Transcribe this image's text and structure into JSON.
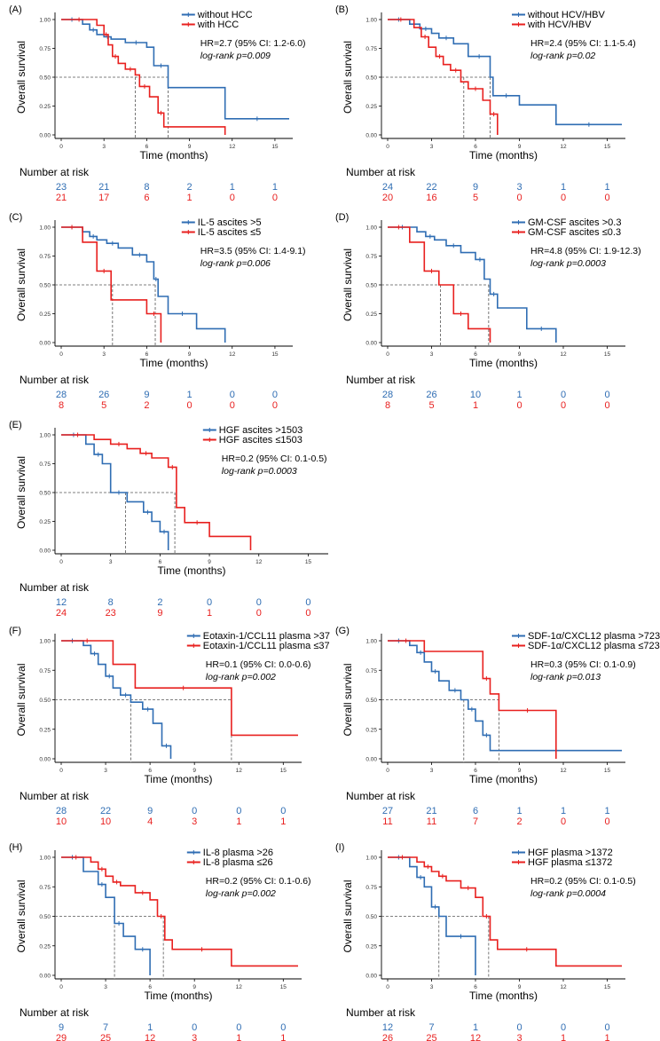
{
  "colors": {
    "blue": "#2f6db3",
    "red": "#e8201f",
    "axis": "#000000",
    "ref": "#555555"
  },
  "common": {
    "xlabel": "Time (months)",
    "ylabel": "Overall survival",
    "risk_title": "Number at risk",
    "xticks": [
      "0",
      "3",
      "6",
      "9",
      "12",
      "15"
    ],
    "yticks": [
      "0.00",
      "0.25",
      "0.50",
      "0.75",
      "1.00"
    ]
  },
  "chart_data": [
    {
      "type": "line",
      "panel": "(A)",
      "xlabel": "Time (months)",
      "ylabel": "Overall survival",
      "xlim": [
        0,
        16
      ],
      "ylim": [
        0,
        1
      ],
      "legend": [
        "without HCC",
        "with HCC"
      ],
      "hr_text": "HR=2.7 (95% CI: 1.2-6.0)",
      "p_text": "log-rank p=0.009",
      "median": [
        7.5,
        5.2
      ],
      "series": [
        {
          "name": "without HCC",
          "color": "blue",
          "x": [
            0,
            1.5,
            2,
            2.5,
            3,
            3.5,
            4.5,
            6,
            6.5,
            7.5,
            11.5,
            16
          ],
          "y": [
            1,
            0.96,
            0.91,
            0.87,
            0.85,
            0.83,
            0.8,
            0.76,
            0.6,
            0.41,
            0.14,
            0.14
          ]
        },
        {
          "name": "with HCC",
          "color": "red",
          "x": [
            0,
            2.5,
            3,
            3.3,
            3.6,
            4,
            4.5,
            5.2,
            5.5,
            6.2,
            6.8,
            7.2,
            11.5
          ],
          "y": [
            1,
            0.95,
            0.87,
            0.78,
            0.68,
            0.62,
            0.57,
            0.52,
            0.42,
            0.33,
            0.19,
            0.07,
            0
          ]
        }
      ],
      "risk": [
        [
          "23",
          "21",
          "8",
          "2",
          "1",
          "1"
        ],
        [
          "21",
          "17",
          "6",
          "1",
          "0",
          "0"
        ]
      ]
    },
    {
      "type": "line",
      "panel": "(B)",
      "xlabel": "Time (months)",
      "ylabel": "Overall survival",
      "xlim": [
        0,
        16
      ],
      "ylim": [
        0,
        1
      ],
      "legend": [
        "without HCV/HBV",
        "with HCV/HBV"
      ],
      "hr_text": "HR=2.4 (95% CI: 1.1-5.4)",
      "p_text": "log-rank p=0.02",
      "median": [
        7.0,
        5.2
      ],
      "series": [
        {
          "name": "without HCV/HBV",
          "color": "blue",
          "x": [
            0,
            1.5,
            2.2,
            3,
            3.5,
            4.5,
            5.5,
            7,
            7.2,
            9,
            11.5,
            16
          ],
          "y": [
            1,
            0.96,
            0.92,
            0.88,
            0.84,
            0.79,
            0.68,
            0.5,
            0.34,
            0.26,
            0.09,
            0.09
          ]
        },
        {
          "name": "with HCV/HBV",
          "color": "red",
          "x": [
            0,
            1.8,
            2.3,
            2.8,
            3.3,
            3.8,
            4.3,
            5,
            5.5,
            6.5,
            7,
            7.5
          ],
          "y": [
            1,
            0.93,
            0.85,
            0.76,
            0.68,
            0.61,
            0.56,
            0.46,
            0.4,
            0.3,
            0.18,
            0
          ]
        }
      ],
      "risk": [
        [
          "24",
          "22",
          "9",
          "3",
          "1",
          "1"
        ],
        [
          "20",
          "16",
          "5",
          "0",
          "0",
          "0"
        ]
      ]
    },
    {
      "type": "line",
      "panel": "(C)",
      "xlabel": "Time (months)",
      "ylabel": "Overall survival",
      "xlim": [
        0,
        16
      ],
      "ylim": [
        0,
        1
      ],
      "legend": [
        "IL-5 ascites >5",
        "IL-5 ascites ≤5"
      ],
      "hr_text": "HR=3.5 (95% CI: 1.4-9.1)",
      "p_text": "log-rank p=0.006",
      "median": [
        6.6,
        3.6
      ],
      "series": [
        {
          "name": "IL-5 ascites >5",
          "color": "blue",
          "x": [
            0,
            1.5,
            2,
            2.5,
            3.2,
            4,
            5,
            6,
            6.5,
            6.8,
            7.5,
            9.5,
            11.5
          ],
          "y": [
            1,
            0.96,
            0.92,
            0.89,
            0.86,
            0.82,
            0.76,
            0.7,
            0.55,
            0.4,
            0.25,
            0.12,
            0
          ]
        },
        {
          "name": "IL-5 ascites ≤5",
          "color": "red",
          "x": [
            0,
            1.5,
            2.5,
            3.5,
            6,
            7
          ],
          "y": [
            1,
            0.87,
            0.62,
            0.37,
            0.25,
            0
          ]
        }
      ],
      "risk": [
        [
          "28",
          "26",
          "9",
          "1",
          "0",
          "0"
        ],
        [
          "8",
          "5",
          "2",
          "0",
          "0",
          "0"
        ]
      ]
    },
    {
      "type": "line",
      "panel": "(D)",
      "xlabel": "Time (months)",
      "ylabel": "Overall survival",
      "xlim": [
        0,
        16
      ],
      "ylim": [
        0,
        1
      ],
      "legend": [
        "GM-CSF ascites >0.3",
        "GM-CSF ascites ≤0.3"
      ],
      "hr_text": "HR=4.8 (95% CI: 1.9-12.3)",
      "p_text": "log-rank p=0.0003",
      "median": [
        6.9,
        3.6
      ],
      "series": [
        {
          "name": "GM-CSF ascites >0.3",
          "color": "blue",
          "x": [
            0,
            2,
            2.6,
            3.2,
            4,
            5,
            6,
            6.6,
            7,
            7.5,
            9.5,
            11.5
          ],
          "y": [
            1,
            0.96,
            0.92,
            0.89,
            0.84,
            0.78,
            0.72,
            0.55,
            0.42,
            0.3,
            0.12,
            0
          ]
        },
        {
          "name": "GM-CSF ascites ≤0.3",
          "color": "red",
          "x": [
            0,
            1.5,
            2.5,
            3.5,
            4.5,
            5.5,
            7
          ],
          "y": [
            1,
            0.87,
            0.62,
            0.5,
            0.25,
            0.12,
            0
          ]
        }
      ],
      "risk": [
        [
          "28",
          "26",
          "10",
          "1",
          "0",
          "0"
        ],
        [
          "8",
          "5",
          "1",
          "0",
          "0",
          "0"
        ]
      ]
    },
    {
      "type": "line",
      "panel": "(E)",
      "xlabel": "Time (months)",
      "ylabel": "Overall survival",
      "xlim": [
        0,
        16
      ],
      "ylim": [
        0,
        1
      ],
      "legend": [
        "HGF ascites >1503",
        "HGF ascites ≤1503"
      ],
      "hr_text": "HR=0.2 (95% CI: 0.1-0.5)",
      "p_text": "log-rank p=0.0003",
      "median": [
        3.9,
        6.9
      ],
      "series": [
        {
          "name": "HGF ascites >1503",
          "color": "blue",
          "x": [
            0,
            1.5,
            2,
            2.5,
            3,
            4,
            5,
            5.5,
            6,
            6.5
          ],
          "y": [
            1,
            0.92,
            0.83,
            0.75,
            0.5,
            0.42,
            0.33,
            0.25,
            0.16,
            0
          ]
        },
        {
          "name": "HGF ascites ≤1503",
          "color": "red",
          "x": [
            0,
            2,
            3,
            4,
            4.8,
            5.5,
            6.5,
            7,
            7.5,
            9,
            11.5
          ],
          "y": [
            1,
            0.96,
            0.92,
            0.88,
            0.84,
            0.8,
            0.72,
            0.37,
            0.24,
            0.12,
            0
          ]
        }
      ],
      "risk": [
        [
          "12",
          "8",
          "2",
          "0",
          "0",
          "0"
        ],
        [
          "24",
          "23",
          "9",
          "1",
          "0",
          "0"
        ]
      ]
    },
    {
      "type": "line",
      "panel": "(F)",
      "xlabel": "Time (months)",
      "ylabel": "Overall survival",
      "xlim": [
        0,
        16
      ],
      "ylim": [
        0,
        1
      ],
      "legend": [
        "Eotaxin-1/CCL11 plasma >37",
        "Eotaxin-1/CCL11 plasma ≤37"
      ],
      "hr_text": "HR=0.1 (95% CI: 0.0-0.6)",
      "p_text": "log-rank p=0.002",
      "median": [
        4.7,
        11.5
      ],
      "series": [
        {
          "name": "Eotaxin-1/CCL11 plasma >37",
          "color": "blue",
          "x": [
            0,
            1.5,
            2,
            2.5,
            3,
            3.5,
            4,
            4.7,
            5.5,
            6.2,
            6.8,
            7.4
          ],
          "y": [
            1,
            0.96,
            0.89,
            0.8,
            0.7,
            0.6,
            0.54,
            0.48,
            0.42,
            0.3,
            0.11,
            0
          ]
        },
        {
          "name": "Eotaxin-1/CCL11 plasma ≤37",
          "color": "red",
          "x": [
            0,
            3.5,
            5,
            11.5,
            16
          ],
          "y": [
            1,
            0.8,
            0.6,
            0.2,
            0.2
          ]
        }
      ],
      "risk": [
        [
          "28",
          "22",
          "9",
          "0",
          "0",
          "0"
        ],
        [
          "10",
          "10",
          "4",
          "3",
          "1",
          "1"
        ]
      ]
    },
    {
      "type": "line",
      "panel": "(G)",
      "xlabel": "Time (months)",
      "ylabel": "Overall survival",
      "xlim": [
        0,
        16
      ],
      "ylim": [
        0,
        1
      ],
      "legend": [
        "SDF-1α/CXCL12 plasma >723",
        "SDF-1α/CXCL12 plasma ≤723"
      ],
      "hr_text": "HR=0.3 (95% CI: 0.1-0.9)",
      "p_text": "log-rank p=0.013",
      "median": [
        5.2,
        7.6
      ],
      "series": [
        {
          "name": "SDF-1α/CXCL12 plasma >723",
          "color": "blue",
          "x": [
            0,
            1.5,
            2,
            2.5,
            3,
            3.5,
            4.2,
            5,
            5.5,
            6,
            6.5,
            7,
            16
          ],
          "y": [
            1,
            0.96,
            0.9,
            0.82,
            0.74,
            0.66,
            0.58,
            0.5,
            0.42,
            0.32,
            0.2,
            0.07,
            0.07
          ]
        },
        {
          "name": "SDF-1α/CXCL12 plasma ≤723",
          "color": "red",
          "x": [
            0,
            2.5,
            6.5,
            7,
            7.6,
            11.5
          ],
          "y": [
            1,
            0.91,
            0.68,
            0.55,
            0.41,
            0
          ]
        }
      ],
      "risk": [
        [
          "27",
          "21",
          "6",
          "1",
          "1",
          "1"
        ],
        [
          "11",
          "11",
          "7",
          "2",
          "0",
          "0"
        ]
      ]
    },
    {
      "type": "line",
      "panel": "(H)",
      "xlabel": "Time (months)",
      "ylabel": "Overall survival",
      "xlim": [
        0,
        16
      ],
      "ylim": [
        0,
        1
      ],
      "legend": [
        "IL-8 plasma >26",
        "IL-8 plasma ≤26"
      ],
      "hr_text": "HR=0.2 (95% CI: 0.1-0.6)",
      "p_text": "log-rank p=0.002",
      "median": [
        3.6,
        6.9
      ],
      "series": [
        {
          "name": "IL-8 plasma >26",
          "color": "blue",
          "x": [
            0,
            1.5,
            2.5,
            3,
            3.6,
            4.2,
            5,
            6
          ],
          "y": [
            1,
            0.88,
            0.77,
            0.66,
            0.44,
            0.33,
            0.22,
            0
          ]
        },
        {
          "name": "IL-8 plasma ≤26",
          "color": "red",
          "x": [
            0,
            2,
            2.5,
            3,
            3.5,
            4,
            5,
            6,
            6.5,
            7,
            7.5,
            11.5,
            16
          ],
          "y": [
            1,
            0.96,
            0.9,
            0.84,
            0.79,
            0.76,
            0.7,
            0.64,
            0.5,
            0.3,
            0.22,
            0.08,
            0.08
          ]
        }
      ],
      "risk": [
        [
          "9",
          "7",
          "1",
          "0",
          "0",
          "0"
        ],
        [
          "29",
          "25",
          "12",
          "3",
          "1",
          "1"
        ]
      ]
    },
    {
      "type": "line",
      "panel": "(I)",
      "xlabel": "Time (months)",
      "ylabel": "Overall survival",
      "xlim": [
        0,
        16
      ],
      "ylim": [
        0,
        1
      ],
      "legend": [
        "HGF plasma >1372",
        "HGF plasma ≤1372"
      ],
      "hr_text": "HR=0.2 (95% CI: 0.1-0.5)",
      "p_text": "log-rank p=0.0004",
      "median": [
        3.5,
        6.9
      ],
      "series": [
        {
          "name": "HGF plasma >1372",
          "color": "blue",
          "x": [
            0,
            1.5,
            2,
            2.5,
            3,
            3.5,
            4,
            6
          ],
          "y": [
            1,
            0.92,
            0.83,
            0.75,
            0.58,
            0.5,
            0.33,
            0
          ]
        },
        {
          "name": "HGF plasma ≤1372",
          "color": "red",
          "x": [
            0,
            2,
            2.5,
            3,
            3.5,
            4,
            5,
            6,
            6.5,
            7,
            7.5,
            11.5,
            16
          ],
          "y": [
            1,
            0.96,
            0.92,
            0.88,
            0.84,
            0.8,
            0.74,
            0.66,
            0.5,
            0.3,
            0.22,
            0.08,
            0.08
          ]
        }
      ],
      "risk": [
        [
          "12",
          "7",
          "1",
          "0",
          "0",
          "0"
        ],
        [
          "26",
          "25",
          "12",
          "3",
          "1",
          "1"
        ]
      ]
    }
  ]
}
